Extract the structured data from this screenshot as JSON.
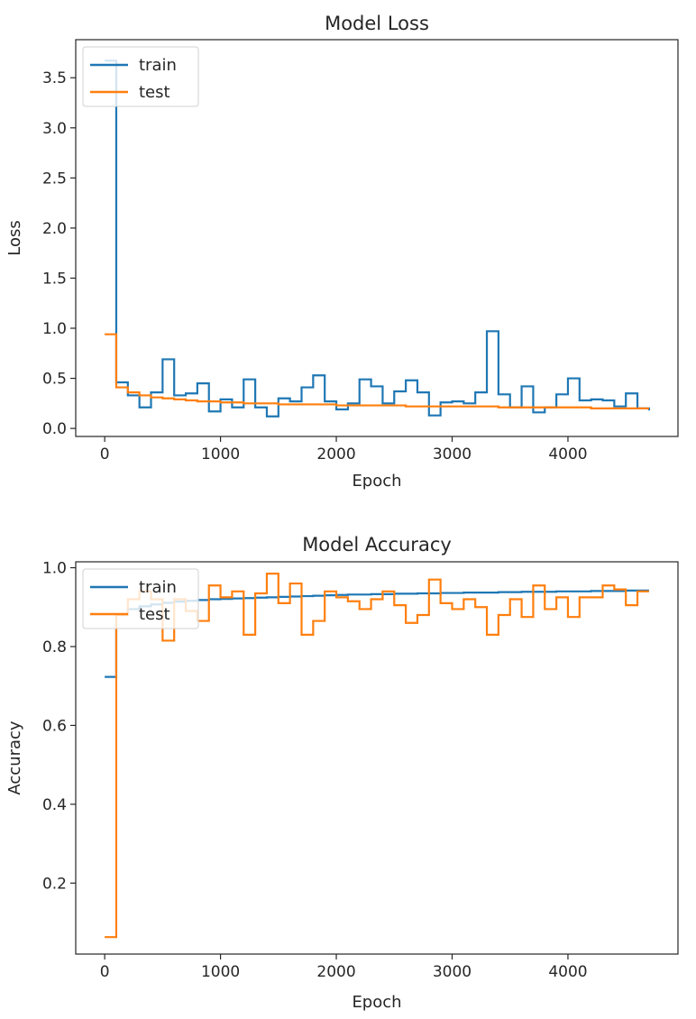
{
  "colors": {
    "train": "#1f77b4",
    "test": "#ff7f0e"
  },
  "chart_data": [
    {
      "type": "line",
      "title": "Model Loss",
      "xlabel": "Epoch",
      "ylabel": "Loss",
      "xlim": [
        -250,
        4950
      ],
      "ylim": [
        -0.08,
        3.88
      ],
      "xticks": [
        0,
        1000,
        2000,
        3000,
        4000
      ],
      "yticks": [
        0.0,
        0.5,
        1.0,
        1.5,
        2.0,
        2.5,
        3.0,
        3.5
      ],
      "xtick_labels": [
        "0",
        "1000",
        "2000",
        "3000",
        "4000"
      ],
      "ytick_labels": [
        "0.0",
        "0.5",
        "1.0",
        "1.5",
        "2.0",
        "2.5",
        "3.0",
        "3.5"
      ],
      "grid": false,
      "legend_position": "upper-left",
      "step": true,
      "series": [
        {
          "name": "train",
          "color": "#1f77b4",
          "x": [
            0,
            100,
            200,
            300,
            400,
            500,
            600,
            700,
            800,
            900,
            1000,
            1100,
            1200,
            1300,
            1400,
            1500,
            1600,
            1700,
            1800,
            1900,
            2000,
            2100,
            2200,
            2300,
            2400,
            2500,
            2600,
            2700,
            2800,
            2900,
            3000,
            3100,
            3200,
            3300,
            3400,
            3500,
            3600,
            3700,
            3800,
            3900,
            4000,
            4100,
            4200,
            4300,
            4400,
            4500,
            4600,
            4700
          ],
          "y": [
            3.67,
            0.46,
            0.33,
            0.21,
            0.36,
            0.69,
            0.33,
            0.35,
            0.45,
            0.17,
            0.29,
            0.21,
            0.49,
            0.21,
            0.12,
            0.3,
            0.27,
            0.41,
            0.53,
            0.27,
            0.19,
            0.25,
            0.49,
            0.42,
            0.25,
            0.37,
            0.48,
            0.36,
            0.13,
            0.26,
            0.27,
            0.25,
            0.36,
            0.97,
            0.34,
            0.21,
            0.42,
            0.16,
            0.21,
            0.34,
            0.5,
            0.28,
            0.29,
            0.28,
            0.22,
            0.35,
            0.2,
            0.18
          ]
        },
        {
          "name": "test",
          "color": "#ff7f0e",
          "x": [
            0,
            100,
            200,
            300,
            400,
            500,
            600,
            700,
            800,
            900,
            1000,
            1100,
            1200,
            1300,
            1400,
            1500,
            1600,
            1700,
            1800,
            1900,
            2000,
            2100,
            2200,
            2300,
            2400,
            2500,
            2600,
            2700,
            2800,
            2900,
            3000,
            3100,
            3200,
            3300,
            3400,
            3500,
            3600,
            3700,
            3800,
            3900,
            4000,
            4100,
            4200,
            4300,
            4400,
            4500,
            4600,
            4700
          ],
          "y": [
            0.94,
            0.41,
            0.36,
            0.33,
            0.31,
            0.3,
            0.29,
            0.28,
            0.27,
            0.27,
            0.26,
            0.26,
            0.25,
            0.25,
            0.25,
            0.24,
            0.24,
            0.24,
            0.24,
            0.24,
            0.23,
            0.23,
            0.23,
            0.23,
            0.23,
            0.23,
            0.22,
            0.22,
            0.22,
            0.22,
            0.22,
            0.22,
            0.22,
            0.22,
            0.21,
            0.21,
            0.21,
            0.21,
            0.21,
            0.21,
            0.21,
            0.21,
            0.2,
            0.2,
            0.2,
            0.2,
            0.2,
            0.2
          ]
        }
      ]
    },
    {
      "type": "line",
      "title": "Model Accuracy",
      "xlabel": "Epoch",
      "ylabel": "Accuracy",
      "xlim": [
        -250,
        4950
      ],
      "ylim": [
        0.02,
        1.015
      ],
      "xticks": [
        0,
        1000,
        2000,
        3000,
        4000
      ],
      "yticks": [
        0.2,
        0.4,
        0.6,
        0.8,
        1.0
      ],
      "xtick_labels": [
        "0",
        "1000",
        "2000",
        "3000",
        "4000"
      ],
      "ytick_labels": [
        "0.2",
        "0.4",
        "0.6",
        "0.8",
        "1.0"
      ],
      "grid": false,
      "legend_position": "upper-left",
      "step": true,
      "series": [
        {
          "name": "train",
          "color": "#1f77b4",
          "x": [
            0,
            100,
            200,
            300,
            400,
            500,
            600,
            700,
            800,
            900,
            1000,
            1100,
            1200,
            1300,
            1400,
            1500,
            1600,
            1700,
            1800,
            1900,
            2000,
            2100,
            2200,
            2300,
            2400,
            2500,
            2600,
            2700,
            2800,
            2900,
            3000,
            3100,
            3200,
            3300,
            3400,
            3500,
            3600,
            3700,
            3800,
            3900,
            4000,
            4100,
            4200,
            4300,
            4400,
            4500,
            4600,
            4700
          ],
          "y": [
            0.723,
            0.88,
            0.895,
            0.902,
            0.907,
            0.911,
            0.914,
            0.916,
            0.918,
            0.92,
            0.921,
            0.922,
            0.923,
            0.924,
            0.925,
            0.926,
            0.927,
            0.928,
            0.929,
            0.93,
            0.931,
            0.932,
            0.932,
            0.933,
            0.933,
            0.934,
            0.934,
            0.935,
            0.935,
            0.936,
            0.936,
            0.937,
            0.937,
            0.937,
            0.938,
            0.938,
            0.939,
            0.939,
            0.939,
            0.94,
            0.94,
            0.94,
            0.941,
            0.941,
            0.941,
            0.942,
            0.942,
            0.942
          ]
        },
        {
          "name": "test",
          "color": "#ff7f0e",
          "x": [
            0,
            100,
            200,
            300,
            400,
            500,
            600,
            700,
            800,
            900,
            1000,
            1100,
            1200,
            1300,
            1400,
            1500,
            1600,
            1700,
            1800,
            1900,
            2000,
            2100,
            2200,
            2300,
            2400,
            2500,
            2600,
            2700,
            2800,
            2900,
            3000,
            3100,
            3200,
            3300,
            3400,
            3500,
            3600,
            3700,
            3800,
            3900,
            4000,
            4100,
            4200,
            4300,
            4400,
            4500,
            4600,
            4700
          ],
          "y": [
            0.063,
            0.88,
            0.92,
            0.94,
            0.92,
            0.815,
            0.92,
            0.89,
            0.865,
            0.955,
            0.925,
            0.94,
            0.83,
            0.935,
            0.985,
            0.91,
            0.96,
            0.83,
            0.865,
            0.94,
            0.925,
            0.915,
            0.895,
            0.92,
            0.94,
            0.905,
            0.86,
            0.88,
            0.97,
            0.91,
            0.895,
            0.92,
            0.9,
            0.83,
            0.88,
            0.92,
            0.875,
            0.955,
            0.895,
            0.925,
            0.875,
            0.925,
            0.925,
            0.955,
            0.945,
            0.905,
            0.94,
            0.94
          ]
        }
      ]
    }
  ]
}
